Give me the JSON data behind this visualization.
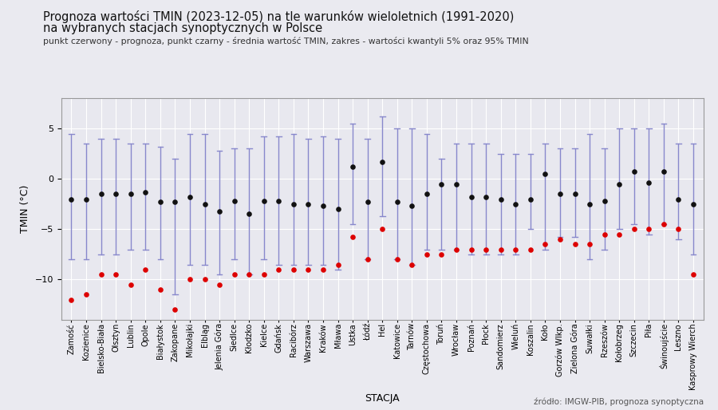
{
  "title_line1": "Prognoza wartości TMIN (2023-12-05) na tle warunków wieloletnich (1991-2020)",
  "title_line2": "na wybranych stacjach synoptycznych w Polsce",
  "subtitle": "punkt czerwony - prognoza, punkt czarny - średnia wartość TMIN, zakres - wartości kwantyli 5% oraz 95% TMIN",
  "xlabel": "STACJA",
  "ylabel": "TMIN (°C)",
  "source": "źródło: IMGW-PIB, prognoza synoptyczna",
  "stations": [
    "Zamość",
    "Kozienice",
    "Bielsko-Biała",
    "Olsztyn",
    "Lublin",
    "Opole",
    "Białystok",
    "Zakopane",
    "Mikołajki",
    "Elbląg",
    "Jelenia Góra",
    "Siedlce",
    "Kłodzko",
    "Kielce",
    "Gdańsk",
    "Racibórz",
    "Warszawa",
    "Kraków",
    "Mława",
    "Ustka",
    "Łódź",
    "Hel",
    "Katowice",
    "Tarnów",
    "Częstochowa",
    "Toruń",
    "Wrocław",
    "Poznań",
    "Płock",
    "Sandomierz",
    "Wieluń",
    "Koszalin",
    "Koło",
    "Gorzów Wlkp.",
    "Zielona Góra",
    "Suwałki",
    "Rzeszów",
    "Kołobrzeg",
    "Szczecin",
    "Piła",
    "Świnoujście",
    "Leszno",
    "Kasprowy Wierch"
  ],
  "tmin_mean": [
    -2.0,
    -2.0,
    -1.5,
    -1.5,
    -1.5,
    -1.3,
    -2.3,
    -2.3,
    -1.8,
    -2.5,
    -3.2,
    -2.2,
    -3.5,
    -2.2,
    -2.2,
    -2.5,
    -2.5,
    -2.7,
    -3.0,
    1.2,
    -2.3,
    1.7,
    -2.3,
    -2.7,
    -1.5,
    -0.5,
    -0.5,
    -1.8,
    -1.8,
    -2.0,
    -2.5,
    -2.0,
    0.5,
    -1.5,
    -1.5,
    -2.5,
    -2.2,
    -0.5,
    0.7,
    -0.4,
    0.7,
    -2.0,
    -2.5
  ],
  "tmin_q05": [
    -8.0,
    -8.0,
    -7.5,
    -7.5,
    -7.0,
    -7.0,
    -8.0,
    -11.5,
    -8.5,
    -8.5,
    -9.5,
    -8.0,
    -9.5,
    -8.0,
    -8.5,
    -8.5,
    -8.5,
    -8.5,
    -9.0,
    -4.5,
    -8.0,
    -3.7,
    -8.0,
    -8.5,
    -7.0,
    -7.0,
    -7.0,
    -7.5,
    -7.5,
    -7.5,
    -7.5,
    -5.0,
    -7.0,
    -5.8,
    -5.8,
    -8.0,
    -7.0,
    -5.0,
    -4.5,
    -5.5,
    -4.5,
    -6.0,
    -7.5
  ],
  "tmin_q95": [
    4.5,
    3.5,
    4.0,
    4.0,
    3.5,
    3.5,
    3.2,
    2.0,
    4.5,
    4.5,
    2.8,
    3.0,
    3.0,
    4.2,
    4.2,
    4.5,
    4.0,
    4.2,
    4.0,
    5.5,
    4.0,
    6.2,
    5.0,
    5.0,
    4.5,
    2.0,
    3.5,
    3.5,
    3.5,
    2.5,
    2.5,
    2.5,
    3.5,
    3.0,
    3.0,
    4.5,
    3.0,
    5.0,
    5.0,
    5.0,
    5.5,
    3.5,
    3.5
  ],
  "tmin_forecast": [
    -12.0,
    -11.5,
    -9.5,
    -9.5,
    -10.5,
    -9.0,
    -11.0,
    -13.0,
    -10.0,
    -10.0,
    -10.5,
    -9.5,
    -9.5,
    -9.5,
    -9.0,
    -9.0,
    -9.0,
    -9.0,
    -8.5,
    -5.8,
    -8.0,
    -5.0,
    -8.0,
    -8.5,
    -7.5,
    -7.5,
    -7.0,
    -7.0,
    -7.0,
    -7.0,
    -7.0,
    -7.0,
    -6.5,
    -6.0,
    -6.5,
    -6.5,
    -5.5,
    -5.5,
    -5.0,
    -5.0,
    -4.5,
    -5.0,
    -9.5
  ],
  "background_color": "#eaeaf0",
  "plot_bg_color": "#e8e8ef",
  "grid_color": "#ffffff",
  "dot_mean_color": "#111111",
  "dot_forecast_color": "#dd0000",
  "errorbar_color": "#8888cc",
  "ylim": [
    -14,
    8
  ],
  "yticks": [
    -10,
    -5,
    0,
    5
  ]
}
